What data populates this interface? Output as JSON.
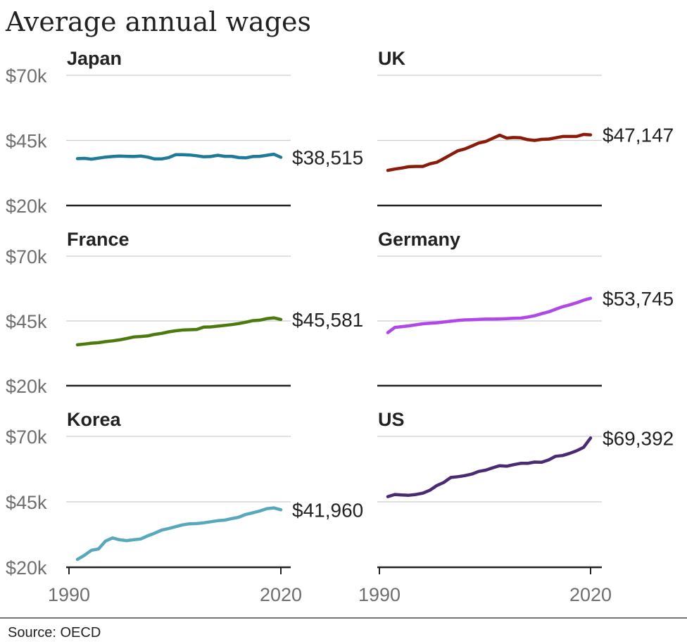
{
  "title": "Average annual wages",
  "source": "Source: OECD",
  "y_tick_labels": [
    "$70k",
    "$45k",
    "$20k"
  ],
  "x_tick_labels": [
    "1990",
    "2020"
  ],
  "chart_data": [
    {
      "type": "line",
      "title": "Japan",
      "color": "#1f7a9a",
      "end_label": "$38,515",
      "x": [
        1991,
        1992,
        1993,
        1994,
        1995,
        1996,
        1997,
        1998,
        1999,
        2000,
        2001,
        2002,
        2003,
        2004,
        2005,
        2006,
        2007,
        2008,
        2009,
        2010,
        2011,
        2012,
        2013,
        2014,
        2015,
        2016,
        2017,
        2018,
        2019,
        2020
      ],
      "values": [
        38000,
        38100,
        37800,
        38200,
        38600,
        38800,
        39000,
        38900,
        38800,
        39000,
        38600,
        37900,
        37900,
        38400,
        39500,
        39500,
        39400,
        39100,
        38700,
        38800,
        39300,
        38900,
        38900,
        38400,
        38300,
        38800,
        38900,
        39300,
        39700,
        38515
      ],
      "ylim": [
        20000,
        70000
      ],
      "yticks": [
        20000,
        45000,
        70000
      ],
      "xlim": [
        1990,
        2020
      ],
      "grid": true
    },
    {
      "type": "line",
      "title": "UK",
      "color": "#8a1a0a",
      "end_label": "$47,147",
      "x": [
        1991,
        1992,
        1993,
        1994,
        1995,
        1996,
        1997,
        1998,
        1999,
        2000,
        2001,
        2002,
        2003,
        2004,
        2005,
        2006,
        2007,
        2008,
        2009,
        2010,
        2011,
        2012,
        2013,
        2014,
        2015,
        2016,
        2017,
        2018,
        2019,
        2020
      ],
      "values": [
        33500,
        34000,
        34400,
        34900,
        35000,
        35000,
        36000,
        36600,
        38000,
        39500,
        41000,
        41700,
        42800,
        44000,
        44600,
        45800,
        47000,
        45900,
        46100,
        46000,
        45300,
        45000,
        45400,
        45500,
        46000,
        46500,
        46500,
        46500,
        47300,
        47147
      ],
      "ylim": [
        20000,
        70000
      ],
      "yticks": [
        20000,
        45000,
        70000
      ],
      "xlim": [
        1990,
        2020
      ],
      "grid": true
    },
    {
      "type": "line",
      "title": "France",
      "color": "#4d7a0e",
      "end_label": "$45,581",
      "x": [
        1991,
        1992,
        1993,
        1994,
        1995,
        1996,
        1997,
        1998,
        1999,
        2000,
        2001,
        2002,
        2003,
        2004,
        2005,
        2006,
        2007,
        2008,
        2009,
        2010,
        2011,
        2012,
        2013,
        2014,
        2015,
        2016,
        2017,
        2018,
        2019,
        2020
      ],
      "values": [
        35800,
        36100,
        36400,
        36600,
        37000,
        37300,
        37700,
        38200,
        38800,
        39000,
        39200,
        39800,
        40200,
        40800,
        41200,
        41500,
        41600,
        41700,
        42600,
        42700,
        43000,
        43300,
        43600,
        44000,
        44500,
        45100,
        45300,
        45900,
        46200,
        45581
      ],
      "ylim": [
        20000,
        70000
      ],
      "yticks": [
        20000,
        45000,
        70000
      ],
      "xlim": [
        1990,
        2020
      ],
      "grid": true
    },
    {
      "type": "line",
      "title": "Germany",
      "color": "#b048e8",
      "end_label": "$53,745",
      "x": [
        1991,
        1992,
        1993,
        1994,
        1995,
        1996,
        1997,
        1998,
        1999,
        2000,
        2001,
        2002,
        2003,
        2004,
        2005,
        2006,
        2007,
        2008,
        2009,
        2010,
        2011,
        2012,
        2013,
        2014,
        2015,
        2016,
        2017,
        2018,
        2019,
        2020
      ],
      "values": [
        40500,
        42500,
        42800,
        43100,
        43500,
        43900,
        44100,
        44300,
        44600,
        44900,
        45200,
        45400,
        45500,
        45600,
        45700,
        45700,
        45800,
        45900,
        46000,
        46100,
        46500,
        47000,
        47800,
        48500,
        49500,
        50500,
        51200,
        52000,
        53000,
        53745
      ],
      "ylim": [
        20000,
        70000
      ],
      "yticks": [
        20000,
        45000,
        70000
      ],
      "xlim": [
        1990,
        2020
      ],
      "grid": true
    },
    {
      "type": "line",
      "title": "Korea",
      "color": "#58a8bd",
      "end_label": "$41,960",
      "x": [
        1991,
        1992,
        1993,
        1994,
        1995,
        1996,
        1997,
        1998,
        1999,
        2000,
        2001,
        2002,
        2003,
        2004,
        2005,
        2006,
        2007,
        2008,
        2009,
        2010,
        2011,
        2012,
        2013,
        2014,
        2015,
        2016,
        2017,
        2018,
        2019,
        2020
      ],
      "values": [
        23000,
        24600,
        26500,
        27000,
        30000,
        31200,
        30500,
        30200,
        30500,
        30800,
        32000,
        33000,
        34200,
        34800,
        35500,
        36200,
        36600,
        36700,
        37000,
        37400,
        37800,
        38000,
        38600,
        39100,
        40200,
        40800,
        41500,
        42400,
        42700,
        41960
      ],
      "ylim": [
        20000,
        70000
      ],
      "yticks": [
        20000,
        45000,
        70000
      ],
      "xlim": [
        1990,
        2020
      ],
      "grid": true
    },
    {
      "type": "line",
      "title": "US",
      "color": "#4a2a72",
      "end_label": "$69,392",
      "x": [
        1991,
        1992,
        1993,
        1994,
        1995,
        1996,
        1997,
        1998,
        1999,
        2000,
        2001,
        2002,
        2003,
        2004,
        2005,
        2006,
        2007,
        2008,
        2009,
        2010,
        2011,
        2012,
        2013,
        2014,
        2015,
        2016,
        2017,
        2018,
        2019,
        2020
      ],
      "values": [
        47000,
        47800,
        47600,
        47500,
        47800,
        48300,
        49400,
        51200,
        52400,
        54300,
        54600,
        55000,
        55600,
        56600,
        57100,
        58000,
        58800,
        58600,
        59200,
        59700,
        59700,
        60200,
        60100,
        61000,
        62400,
        62700,
        63500,
        64500,
        65800,
        69392
      ],
      "ylim": [
        20000,
        70000
      ],
      "yticks": [
        20000,
        45000,
        70000
      ],
      "xlim": [
        1990,
        2020
      ],
      "grid": true
    }
  ]
}
